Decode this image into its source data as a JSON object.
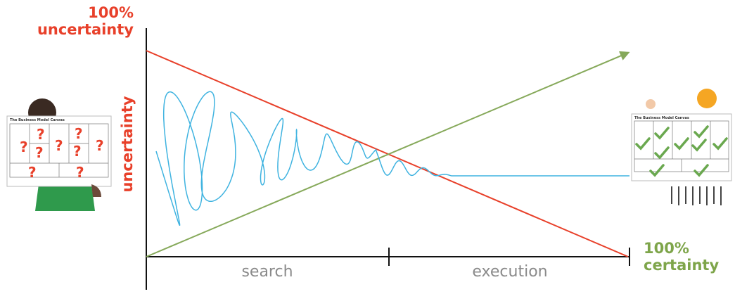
{
  "top_label": [
    "100%",
    "uncertainty"
  ],
  "axis_label": "uncertainty",
  "phases": [
    "search",
    "execution"
  ],
  "bottom_label": [
    "100%",
    "certainty"
  ],
  "left_canvas": {
    "title": "The Business Model Canvas",
    "marks": [
      "?",
      "?",
      "?",
      "?",
      "?",
      "?",
      "?",
      "?",
      "?",
      "?"
    ]
  },
  "right_canvas": {
    "title": "The Business Model Canvas"
  }
}
